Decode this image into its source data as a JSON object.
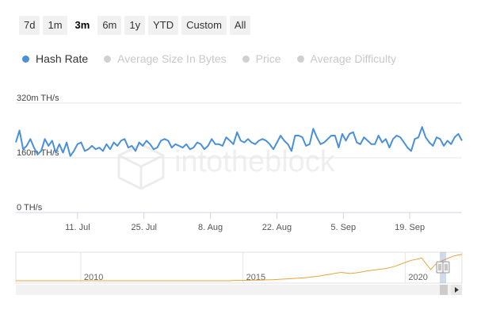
{
  "range_selector": {
    "buttons": [
      {
        "label": "7d",
        "active": false
      },
      {
        "label": "1m",
        "active": false
      },
      {
        "label": "3m",
        "active": true
      },
      {
        "label": "6m",
        "active": false
      },
      {
        "label": "1y",
        "active": false
      },
      {
        "label": "YTD",
        "active": false
      },
      {
        "label": "Custom",
        "active": false
      },
      {
        "label": "All",
        "active": false
      }
    ]
  },
  "legend": [
    {
      "label": "Hash Rate",
      "active": true,
      "color": "#4a90d9"
    },
    {
      "label": "Average Size In Bytes",
      "active": false
    },
    {
      "label": "Price",
      "active": false
    },
    {
      "label": "Average Difficulty",
      "active": false
    }
  ],
  "watermark": {
    "text": "intotheblock"
  },
  "chart_data": {
    "type": "line",
    "title": "",
    "xlabel": "",
    "ylabel": "",
    "y_tick_labels": [
      "320m TH/s",
      "160m TH/s",
      "0 TH/s"
    ],
    "y_ticks": [
      320,
      160,
      0
    ],
    "ylim": [
      0,
      320
    ],
    "y_unit": "m TH/s",
    "x_start": "2021-06-28",
    "x_end": "2021-09-30",
    "x_tick_labels": [
      "11. Jul",
      "25. Jul",
      "8. Aug",
      "22. Aug",
      "5. Sep",
      "19. Sep"
    ],
    "x_ticks": [
      "2021-07-11",
      "2021-07-25",
      "2021-08-08",
      "2021-08-22",
      "2021-09-05",
      "2021-09-19"
    ],
    "grid": true,
    "series": [
      {
        "name": "Hash Rate",
        "color": "#4a90d9",
        "values": [
          205,
          240,
          185,
          195,
          215,
          190,
          170,
          180,
          215,
          195,
          210,
          175,
          200,
          175,
          205,
          165,
          180,
          200,
          205,
          180,
          185,
          195,
          185,
          190,
          180,
          200,
          185,
          205,
          195,
          210,
          215,
          190,
          195,
          180,
          205,
          195,
          210,
          200,
          185,
          190,
          210,
          215,
          210,
          190,
          200,
          195,
          190,
          200,
          185,
          190,
          205,
          200,
          185,
          195,
          215,
          200,
          200,
          195,
          220,
          210,
          200,
          235,
          210,
          205,
          215,
          205,
          200,
          210,
          215,
          210,
          200,
          185,
          205,
          225,
          210,
          200,
          180,
          225,
          225,
          220,
          195,
          200,
          245,
          220,
          200,
          205,
          215,
          225,
          225,
          190,
          230,
          210,
          230,
          235,
          205,
          200,
          220,
          210,
          200,
          200,
          225,
          205,
          215,
          190,
          215,
          225,
          220,
          205,
          190,
          180,
          215,
          220,
          250,
          220,
          205,
          195,
          220,
          215,
          195,
          210,
          200,
          220,
          230,
          210
        ]
      }
    ]
  },
  "navigator": {
    "tick_labels": [
      "2010",
      "2015",
      "2020"
    ],
    "tick_years": [
      2010,
      2015,
      2020
    ],
    "series_color": "#e8a33c",
    "values": [
      0,
      0,
      0,
      0,
      0,
      0,
      0,
      0,
      0,
      0,
      0,
      0,
      0,
      0,
      0,
      0,
      0,
      0,
      0,
      0,
      0,
      0,
      0,
      0,
      0,
      0,
      0,
      0,
      0,
      0,
      0,
      0,
      0,
      0,
      0,
      0,
      0,
      0,
      0,
      0,
      0,
      0,
      0,
      0,
      0,
      0,
      0,
      0,
      0,
      1,
      1,
      1,
      1,
      2,
      2,
      2,
      3,
      3,
      4,
      5,
      6,
      7,
      8,
      9,
      10,
      11,
      13,
      15,
      17,
      20,
      22,
      25,
      28,
      30,
      28,
      26,
      28,
      30,
      33,
      36,
      38,
      40,
      42,
      44,
      48,
      52,
      58,
      64,
      70,
      75,
      78,
      82,
      60,
      40,
      58,
      68,
      75,
      82,
      88,
      92,
      95
    ]
  }
}
